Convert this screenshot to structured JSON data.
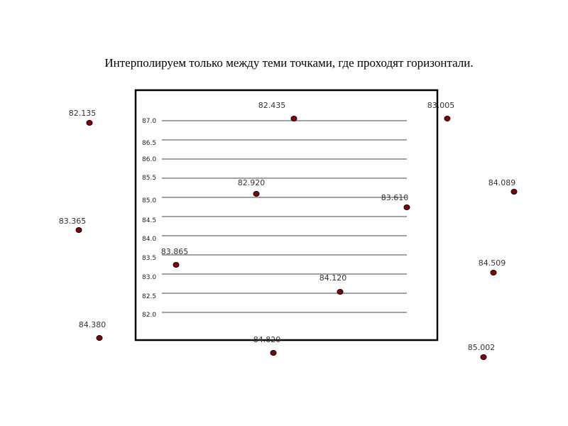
{
  "title": "Интерполируем  только  между теми точками, где проходят горизонтали.",
  "contours": [
    "87.0",
    "86.5",
    "86.0",
    "85.5",
    "85.0",
    "84.5",
    "84.0",
    "83.5",
    "83.0",
    "82.5",
    "82.0"
  ],
  "points": [
    {
      "label": "82.135"
    },
    {
      "label": "82.435"
    },
    {
      "label": "83.005"
    },
    {
      "label": "82.920"
    },
    {
      "label": "83.610"
    },
    {
      "label": "84.089"
    },
    {
      "label": "83.365"
    },
    {
      "label": "83.865"
    },
    {
      "label": "84.509"
    },
    {
      "label": "84.120"
    },
    {
      "label": "84.380"
    },
    {
      "label": "84.820"
    },
    {
      "label": "85.002"
    }
  ]
}
